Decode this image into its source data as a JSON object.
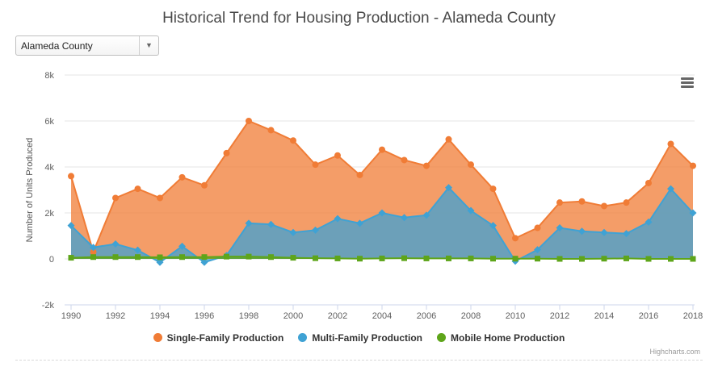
{
  "title": "Historical Trend for Housing Production - Alameda County",
  "dropdown": {
    "selected": "Alameda County",
    "arrow": "▼"
  },
  "credits": "Highcharts.com",
  "chart_data": {
    "type": "area",
    "ylabel": "Number of Units Produced",
    "xlabel": "",
    "ylim": [
      -2000,
      8000
    ],
    "xlim": [
      1990,
      2018
    ],
    "y_ticks": [
      -2000,
      0,
      2000,
      4000,
      6000,
      8000
    ],
    "y_tick_labels": [
      "-2k",
      "0",
      "2k",
      "4k",
      "6k",
      "8k"
    ],
    "x_ticks": [
      1990,
      1992,
      1994,
      1996,
      1998,
      2000,
      2002,
      2004,
      2006,
      2008,
      2010,
      2012,
      2014,
      2016,
      2018
    ],
    "x_tick_labels": [
      "1990",
      "1992",
      "1994",
      "1996",
      "1998",
      "2000",
      "2002",
      "2004",
      "2006",
      "2008",
      "2010",
      "2012",
      "2014",
      "2016",
      "2018"
    ],
    "grid": true,
    "legend_position": "bottom-center",
    "x": [
      1990,
      1991,
      1992,
      1993,
      1994,
      1995,
      1996,
      1997,
      1998,
      1999,
      2000,
      2001,
      2002,
      2003,
      2004,
      2005,
      2006,
      2007,
      2008,
      2009,
      2010,
      2011,
      2012,
      2013,
      2014,
      2015,
      2016,
      2017,
      2018
    ],
    "series": [
      {
        "name": "Single-Family Production",
        "color": "#f07c36",
        "marker": "circle",
        "values": [
          3600,
          300,
          2650,
          3050,
          2650,
          3550,
          3200,
          4600,
          6000,
          5600,
          5150,
          4100,
          4500,
          3650,
          4750,
          4300,
          4050,
          5200,
          4100,
          3050,
          900,
          1350,
          2450,
          2500,
          2300,
          2450,
          3300,
          5000,
          4050
        ]
      },
      {
        "name": "Multi-Family Production",
        "color": "#3fa2d4",
        "marker": "diamond",
        "values": [
          1450,
          500,
          650,
          380,
          -150,
          550,
          -150,
          150,
          1550,
          1500,
          1150,
          1250,
          1750,
          1550,
          2000,
          1800,
          1900,
          3100,
          2100,
          1450,
          -100,
          400,
          1350,
          1200,
          1150,
          1100,
          1600,
          3050,
          2000
        ]
      },
      {
        "name": "Mobile Home Production",
        "color": "#5ea51a",
        "marker": "square",
        "values": [
          50,
          80,
          80,
          80,
          70,
          80,
          80,
          100,
          100,
          80,
          50,
          30,
          20,
          10,
          20,
          30,
          20,
          20,
          20,
          10,
          10,
          10,
          0,
          0,
          10,
          20,
          0,
          0,
          0
        ]
      }
    ]
  }
}
